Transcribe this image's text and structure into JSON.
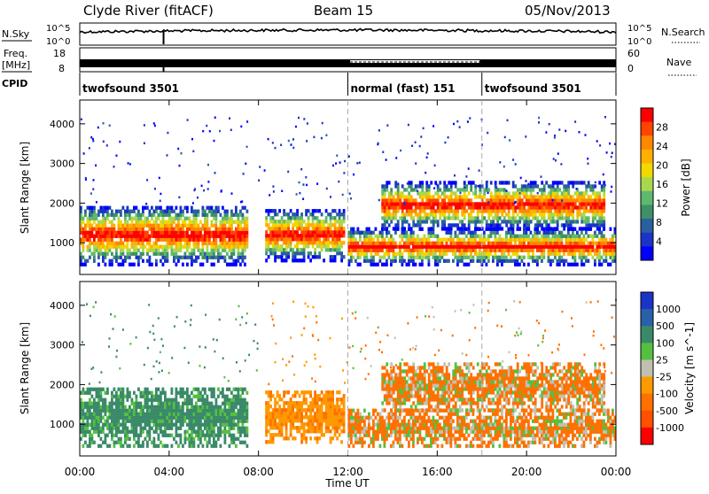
{
  "chart_data": {
    "type": "heatmap",
    "header": {
      "title_left": "Clyde River (fitACF)",
      "title_center": "Beam 15",
      "title_right": "05/Nov/2013"
    },
    "x_axis": {
      "label": "Time UT",
      "range_hours": [
        0,
        24
      ],
      "ticks": [
        "00:00",
        "04:00",
        "08:00",
        "12:00",
        "16:00",
        "20:00",
        "00:00"
      ],
      "tick_hours": [
        0,
        4,
        8,
        12,
        16,
        20,
        24
      ]
    },
    "nsky_panel": {
      "left_label": "N.Sky",
      "left_ticks": [
        "10^5",
        "10^0"
      ],
      "right_label": "N.Search",
      "right_ticks": [
        "10^5",
        "10^0"
      ]
    },
    "freq_panel": {
      "left_label_1": "Freq.",
      "left_label_2": "[MHz]",
      "left_ticks": [
        "18",
        "8"
      ],
      "right_label": "Nave",
      "right_ticks": [
        "60",
        "0"
      ]
    },
    "cpid": {
      "label": "CPID",
      "segments": [
        {
          "start_hour": 0,
          "name": "twofsound 3501"
        },
        {
          "start_hour": 12,
          "name": "normal (fast) 151"
        },
        {
          "start_hour": 18,
          "name": "twofsound 3501"
        }
      ]
    },
    "power_panel": {
      "ylabel": "Slant Range [km]",
      "ylim": [
        200,
        4600
      ],
      "yticks": [
        1000,
        2000,
        3000,
        4000
      ],
      "colorbar_label": "Power [dB]",
      "colorbar_ticks": [
        "28",
        "24",
        "20",
        "16",
        "12",
        "8",
        "4"
      ],
      "colorbar_colors": [
        "#ff0000",
        "#ff4400",
        "#ff8800",
        "#ffb000",
        "#f0d800",
        "#a8d850",
        "#5fb870",
        "#3f8f68",
        "#2a5fa0",
        "#1a34c8",
        "#0000ff"
      ]
    },
    "velocity_panel": {
      "ylabel": "Slant Range [km]",
      "ylim": [
        200,
        4600
      ],
      "yticks": [
        1000,
        2000,
        3000,
        4000
      ],
      "colorbar_label": "Velocity [m s^-1]",
      "colorbar_ticks": [
        "1000",
        "500",
        "100",
        "25",
        "-25",
        "-100",
        "-500",
        "-1000"
      ],
      "colorbar_colors": [
        "#1a34c8",
        "#2a60a8",
        "#3a8a6a",
        "#55c040",
        "#c0c0b0",
        "#ff9900",
        "#ff7000",
        "#ff5000",
        "#ff0000"
      ]
    },
    "echo_regions": [
      {
        "t0": 0.0,
        "t1": 7.5,
        "r0": 500,
        "r1": 2000
      },
      {
        "t0": 8.3,
        "t1": 11.8,
        "r0": 600,
        "r1": 1900
      },
      {
        "t0": 12.0,
        "t1": 24.0,
        "r0": 500,
        "r1": 1400
      },
      {
        "t0": 13.5,
        "t1": 23.5,
        "r0": 1400,
        "r1": 2600
      }
    ]
  }
}
